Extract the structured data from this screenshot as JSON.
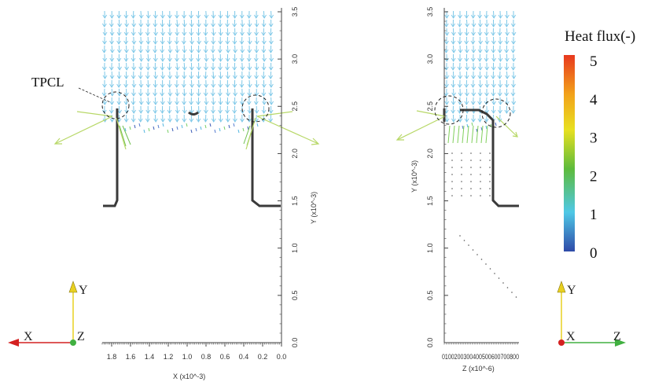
{
  "annotation": {
    "tpcl": "TPCL"
  },
  "colorbar": {
    "title": "Heat flux(-)",
    "labels": [
      "5",
      "4",
      "3",
      "2",
      "1",
      "0"
    ],
    "range": [
      0,
      5
    ],
    "colors": [
      "#e8391e",
      "#f2a21a",
      "#e8e020",
      "#5dbb3c",
      "#4fc8e6",
      "#2e4aa8"
    ]
  },
  "chart_data": [
    {
      "type": "vector-field",
      "view": "X-Y",
      "xlabel": "X (x10^-3)",
      "ylabel": "Y (x10^-3)",
      "xticks": [
        "1.8",
        "1.6",
        "1.4",
        "1.2",
        "1.0",
        "0.8",
        "0.6",
        "0.4",
        "0.2",
        "0.0"
      ],
      "yticks": [
        "0.0",
        "0.5",
        "1.0",
        "1.5",
        "2.0",
        "2.5",
        "3.0",
        "3.5"
      ],
      "xlim": [
        1.9,
        0.0
      ],
      "ylim": [
        0.0,
        3.5
      ],
      "triad": {
        "up": "Y",
        "left": "X",
        "center": "Z"
      }
    },
    {
      "type": "vector-field",
      "view": "Z-Y",
      "xlabel": "Z (x10^-6)",
      "ylabel": "Y (x10^-3)",
      "xticks_text": "0100200300400500600700800",
      "yticks": [
        "0.0",
        "0.5",
        "1.0",
        "1.5",
        "2.0",
        "2.5",
        "3.0",
        "3.5"
      ],
      "ylim": [
        0.0,
        3.5
      ],
      "triad": {
        "up": "Y",
        "right": "Z",
        "center": "X"
      }
    }
  ],
  "colors": {
    "arrow": "#7ec8e8",
    "wall": "#3a3a3a",
    "axisX": "#d42020",
    "axisY": "#e8d020",
    "axisZ": "#40b040"
  }
}
